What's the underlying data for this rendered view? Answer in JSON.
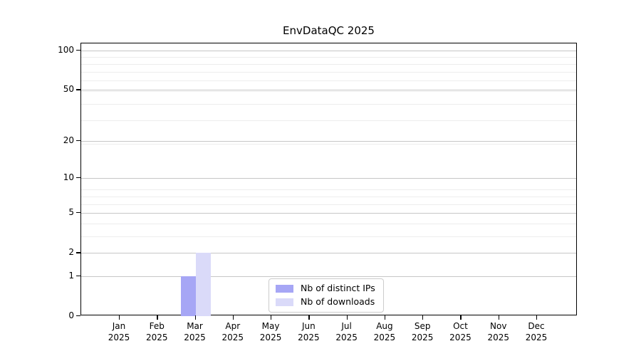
{
  "chart_data": {
    "type": "bar",
    "title": "EnvDataQC 2025",
    "categories": [
      "Jan",
      "Feb",
      "Mar",
      "Apr",
      "May",
      "Jun",
      "Jul",
      "Aug",
      "Sep",
      "Oct",
      "Nov",
      "Dec"
    ],
    "category_year": "2025",
    "series": [
      {
        "name": "Nb of distinct IPs",
        "color": "#a6a6f5",
        "values": [
          0,
          0,
          1,
          0,
          0,
          0,
          0,
          0,
          0,
          0,
          0,
          0
        ]
      },
      {
        "name": "Nb of downloads",
        "color": "#dadaf9",
        "values": [
          0,
          0,
          2,
          0,
          0,
          0,
          0,
          0,
          0,
          0,
          0,
          0
        ]
      }
    ],
    "yticks": [
      0,
      1,
      2,
      5,
      10,
      20,
      50,
      100
    ],
    "y_minor_gridlines": [
      3,
      4,
      6,
      7,
      8,
      19,
      29,
      39,
      49,
      59,
      69,
      79,
      89
    ],
    "scale": "log10(v+1)",
    "ylim": [
      0,
      113
    ],
    "grid": true,
    "legend_position": "lower center",
    "colors": {
      "major_grid": "#c6c6c6",
      "minor_grid": "#ededed",
      "axis": "#000000"
    }
  }
}
